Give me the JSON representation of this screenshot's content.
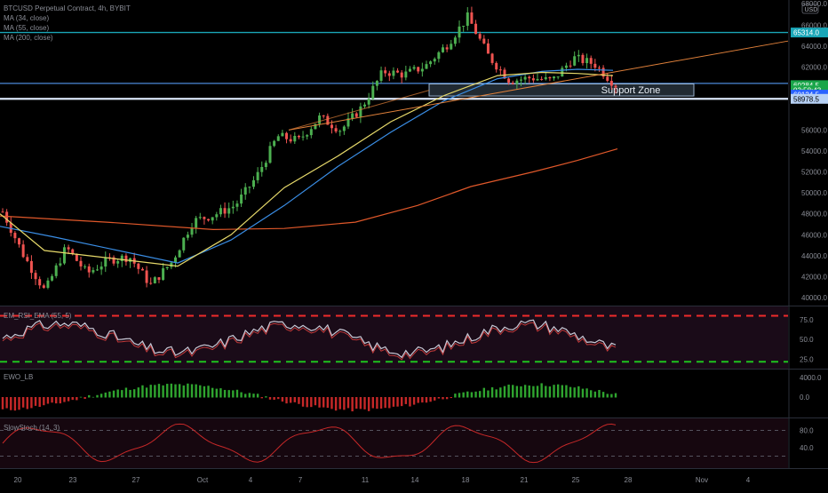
{
  "header": {
    "symbol_line": "BTCUSD Perpetual Contract, 4h, BYBIT",
    "ma_lines": [
      "MA (34, close)",
      "MA (55, close)",
      "MA (200, close)"
    ]
  },
  "axis": {
    "price_ticks": [
      "40000.0",
      "42000.0",
      "44000.0",
      "46000.0",
      "48000.0",
      "50000.0",
      "52000.0",
      "54000.0",
      "56000.0",
      "62000.0",
      "64000.0",
      "66000.0"
    ],
    "top_tick": "68000.0",
    "currency": "USD",
    "x_ticks": [
      "20",
      "23",
      "27",
      "Oct",
      "4",
      "7",
      "11",
      "14",
      "18",
      "21",
      "25",
      "28",
      "Nov",
      "4"
    ]
  },
  "price_labels": [
    {
      "text": "65314.0",
      "bg": "#1aa6b7",
      "fg": "#ffffff",
      "price": 65314
    },
    {
      "text": "60284.5",
      "bg": "#1aa64a",
      "fg": "#ffffff",
      "price": 60284.5
    },
    {
      "text": "03:58:43",
      "bg": "#1aa64a",
      "fg": "#ffffff",
      "price": 59790
    },
    {
      "text": "60124.5",
      "bg": "#2962ff",
      "fg": "#ffffff",
      "price": 59380
    },
    {
      "text": "58978.5",
      "bg": "#b7d1f5",
      "fg": "#000000",
      "price": 58978.5
    }
  ],
  "annotations": {
    "support_zone": "Support  Zone"
  },
  "indicators": {
    "rsi": {
      "label": "EM_RSI_EMA (55, 5)",
      "ticks": [
        "75.0",
        "50.0",
        "25.0"
      ]
    },
    "ewo": {
      "label": "EWO_LB",
      "ticks": [
        "4000.0",
        "0.0"
      ]
    },
    "stoch": {
      "label": "SlowStoch (14, 3)",
      "ticks": [
        "80.0",
        "40.0"
      ]
    }
  },
  "colors": {
    "up": "#26a69a",
    "up_bright": "#4caf50",
    "down": "#ef5350",
    "ma34": "#e6d96a",
    "ma55": "#3a8ee6",
    "ma200": "#e0582a",
    "resistance": "#1aa6b7",
    "support": "#4a88d8",
    "trendline": "#e0803a",
    "rsi_bands": "#ef2b2b",
    "rsi_low": "#1ec31e"
  },
  "chart_data": {
    "type": "candlestick",
    "title": "BTCUSD Perpetual Contract, 4h, BYBIT",
    "x_axis_labels": [
      "20",
      "23",
      "27",
      "Oct",
      "4",
      "7",
      "11",
      "14",
      "18",
      "21",
      "25",
      "28",
      "Nov",
      "4"
    ],
    "ylim": [
      39500,
      68500
    ],
    "horizontal_levels": [
      65314.0,
      60284.5,
      58978.5
    ],
    "support_zone": {
      "label": "Support  Zone",
      "low": 59250,
      "high": 60400
    },
    "trendline": {
      "from_price": 56000,
      "to_price": 64500
    },
    "price_path": [
      {
        "date": "Sep 20",
        "price": 48200
      },
      {
        "date": "Sep 21",
        "price": 44000
      },
      {
        "date": "Sep 22",
        "price": 40600
      },
      {
        "date": "Sep 23",
        "price": 44800
      },
      {
        "date": "Sep 25",
        "price": 42300
      },
      {
        "date": "Sep 26",
        "price": 43600
      },
      {
        "date": "Sep 27",
        "price": 43900
      },
      {
        "date": "Sep 29",
        "price": 41200
      },
      {
        "date": "Sep 30",
        "price": 43400
      },
      {
        "date": "Oct 1",
        "price": 47300
      },
      {
        "date": "Oct 3",
        "price": 47900
      },
      {
        "date": "Oct 4",
        "price": 48800
      },
      {
        "date": "Oct 5",
        "price": 51500
      },
      {
        "date": "Oct 6",
        "price": 55400
      },
      {
        "date": "Oct 9",
        "price": 55000
      },
      {
        "date": "Oct 11",
        "price": 57200
      },
      {
        "date": "Oct 12",
        "price": 56000
      },
      {
        "date": "Oct 14",
        "price": 58200
      },
      {
        "date": "Oct 15",
        "price": 61600
      },
      {
        "date": "Oct 17",
        "price": 61300
      },
      {
        "date": "Oct 18",
        "price": 62100
      },
      {
        "date": "Oct 19",
        "price": 64100
      },
      {
        "date": "Oct 20",
        "price": 66800
      },
      {
        "date": "Oct 21",
        "price": 63000
      },
      {
        "date": "Oct 22",
        "price": 60700
      },
      {
        "date": "Oct 23",
        "price": 61000
      },
      {
        "date": "Oct 24",
        "price": 60700
      },
      {
        "date": "Oct 25",
        "price": 62900
      },
      {
        "date": "Oct 26",
        "price": 62300
      },
      {
        "date": "Oct 27",
        "price": 60284.5
      }
    ],
    "ma34_path": [
      [
        0,
        48000
      ],
      [
        50,
        44500
      ],
      [
        200,
        43000
      ],
      [
        260,
        46000
      ],
      [
        320,
        50500
      ],
      [
        380,
        53500
      ],
      [
        440,
        56800
      ],
      [
        500,
        59300
      ],
      [
        560,
        61200
      ],
      [
        610,
        61500
      ],
      [
        650,
        61400
      ],
      [
        690,
        61200
      ]
    ],
    "ma55_path": [
      [
        0,
        46800
      ],
      [
        60,
        45800
      ],
      [
        200,
        43300
      ],
      [
        260,
        45500
      ],
      [
        320,
        48800
      ],
      [
        380,
        52500
      ],
      [
        440,
        55800
      ],
      [
        500,
        58800
      ],
      [
        560,
        60900
      ],
      [
        610,
        61600
      ],
      [
        650,
        61800
      ],
      [
        690,
        61700
      ]
    ],
    "ma200_path": [
      [
        0,
        47800
      ],
      [
        120,
        47200
      ],
      [
        240,
        46500
      ],
      [
        320,
        46600
      ],
      [
        400,
        47200
      ],
      [
        470,
        48800
      ],
      [
        530,
        50600
      ],
      [
        600,
        52000
      ],
      [
        650,
        53100
      ],
      [
        695,
        54200
      ]
    ]
  }
}
